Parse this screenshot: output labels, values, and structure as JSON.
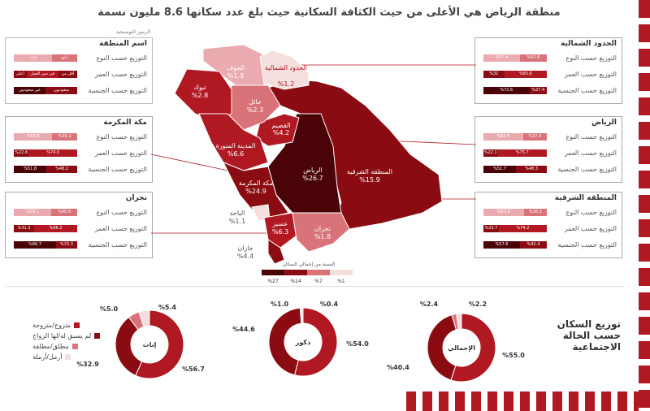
{
  "title": "منطقة الرياض هي الأعلى من حيث الكثافة السكانية حيث بلغ عدد سكانها 8.6 مليون نسمة",
  "legend_key": {
    "label": "الرموز التوضيحية",
    "title": "اسم المنطقة",
    "rows": [
      "التوزيع حسب النوع",
      "التوزيع حسب العمر",
      "التوزيع حسب الجنسية"
    ],
    "row1": [
      "ذكور",
      "إناث"
    ],
    "row2": [
      "أقل من سن العمل",
      "في سن العمل",
      "أعلى من سن العمل"
    ],
    "row3": [
      "سعوديون",
      "غير سعوديين"
    ]
  },
  "row_labels": [
    "التوزيع حسب النوع",
    "التوزيع حسب العمر",
    "التوزيع حسب الجنسية"
  ],
  "regions_left": [
    {
      "name": "مكة المكرمة",
      "rows": [
        [
          "%60.8",
          "%39.2"
        ],
        [
          "%22.8",
          "%74.0"
        ],
        [
          "%51.8",
          "%48.2"
        ]
      ]
    },
    {
      "name": "نجران",
      "rows": [
        [
          "%59.1",
          "%40.9"
        ],
        [
          "%31.3",
          "%66.2"
        ],
        [
          "%66.7",
          "%33.3"
        ]
      ]
    }
  ],
  "regions_right": [
    {
      "name": "الحدود الشمالية",
      "rows": [
        [
          "%57.4",
          "%42.6"
        ],
        [
          "%32",
          "%65.6"
        ],
        [
          "%72.6",
          "%27.4"
        ]
      ]
    },
    {
      "name": "الرياض",
      "rows": [
        [
          "%62.6",
          "%37.4"
        ],
        [
          "%22.1",
          "%75.7"
        ],
        [
          "%51.7",
          "%48.3"
        ]
      ]
    },
    {
      "name": "المنطقة الشرقية",
      "rows": [
        [
          "%63.8",
          "%36.2"
        ],
        [
          "%23.7",
          "%74.2"
        ],
        [
          "%57.6",
          "%42.4"
        ]
      ]
    }
  ],
  "map_labels": [
    {
      "name": "الجوف",
      "pct": "%1.9"
    },
    {
      "name": "الحدود الشمالية",
      "pct": "%1.2"
    },
    {
      "name": "تبوك",
      "pct": "%2.8"
    },
    {
      "name": "حائل",
      "pct": "%2.3"
    },
    {
      "name": "القصيم",
      "pct": "%4.2"
    },
    {
      "name": "المدينة المنورة",
      "pct": "%6.6"
    },
    {
      "name": "الرياض",
      "pct": "%26.7"
    },
    {
      "name": "المنطقة الشرقية",
      "pct": "%15.9"
    },
    {
      "name": "مكة المكرمة",
      "pct": "%24.9"
    },
    {
      "name": "الباحة",
      "pct": "%1.1"
    },
    {
      "name": "عسير",
      "pct": "%6.3"
    },
    {
      "name": "نجران",
      "pct": "%1.8"
    },
    {
      "name": "جازان",
      "pct": "%4.4"
    }
  ],
  "scale": {
    "title": "النسبة من إجمالي السكان",
    "ticks": [
      "%27",
      "%14",
      "%7",
      "%1"
    ]
  },
  "colors": {
    "darkest": "#4a0306",
    "dark": "#8a0c12",
    "mid": "#b01822",
    "light": "#d9737a",
    "lighter": "#e9aab0",
    "pale": "#f5dede"
  },
  "section_title": "توزيع السكان حسب الحالة الاجتماعية",
  "marital_legend": [
    "متزوج/متزوجة",
    "لم يسبق له/لها الزواج",
    "مطلق/مطلقة",
    "أرمل/أرملة"
  ],
  "chart_data": [
    {
      "type": "pie",
      "title": "الإجمالي",
      "categories": [
        "متزوج/متزوجة",
        "لم يسبق له/لها الزواج",
        "مطلق/مطلقة",
        "أرمل/أرملة"
      ],
      "values": [
        55.0,
        40.4,
        2.2,
        2.4
      ],
      "labels": [
        "%55.0",
        "%40.4",
        "%2.2",
        "%2.4"
      ]
    },
    {
      "type": "pie",
      "title": "ذكور",
      "categories": [
        "متزوج/متزوجة",
        "لم يسبق له/لها الزواج",
        "مطلق/مطلقة",
        "أرمل/أرملة"
      ],
      "values": [
        54.0,
        44.6,
        0.4,
        1.0
      ],
      "labels": [
        "%54.0",
        "%44.6",
        "%0.4",
        "%1.0"
      ]
    },
    {
      "type": "pie",
      "title": "إناث",
      "categories": [
        "متزوج/متزوجة",
        "لم يسبق له/لها الزواج",
        "مطلق/مطلقة",
        "أرمل/أرملة"
      ],
      "values": [
        56.7,
        32.9,
        5.4,
        5.0
      ],
      "labels": [
        "%56.7",
        "%32.9",
        "%5.4",
        "%5.0"
      ]
    }
  ]
}
